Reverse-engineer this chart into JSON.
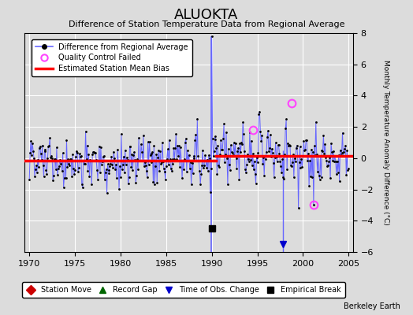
{
  "title": "ALUOKTA",
  "subtitle": "Difference of Station Temperature Data from Regional Average",
  "credit": "Berkeley Earth",
  "ylabel_right": "Monthly Temperature Anomaly Difference (°C)",
  "xlim": [
    1969.5,
    2005.5
  ],
  "ylim": [
    -6,
    8
  ],
  "yticks": [
    -6,
    -4,
    -2,
    0,
    2,
    4,
    6,
    8
  ],
  "xticks": [
    1970,
    1975,
    1980,
    1985,
    1990,
    1995,
    2000,
    2005
  ],
  "bias_line_y_before": -0.15,
  "bias_line_y_after": 0.15,
  "bias_break_x": 1990.5,
  "bias_line_color": "#ff0000",
  "data_line_color": "#6666ff",
  "data_marker_color": "#000000",
  "qc_fail_color": "#ff44ff",
  "bg_color": "#dcdcdc",
  "plot_bg_color": "#dcdcdc",
  "grid_color": "#ffffff",
  "empirical_break_x": 1990.0,
  "empirical_break_y": -4.5,
  "time_of_obs_x": 1997.8,
  "spike_x": 1990.0,
  "spike_y": 7.8,
  "legend_items": [
    {
      "label": "Difference from Regional Average"
    },
    {
      "label": "Quality Control Failed"
    },
    {
      "label": "Estimated Station Mean Bias"
    }
  ],
  "bottom_legend": [
    {
      "label": "Station Move",
      "color": "#cc0000",
      "marker": "D"
    },
    {
      "label": "Record Gap",
      "color": "#006600",
      "marker": "^"
    },
    {
      "label": "Time of Obs. Change",
      "color": "#0000cc",
      "marker": "v"
    },
    {
      "label": "Empirical Break",
      "color": "#000000",
      "marker": "s"
    }
  ],
  "seed": 42
}
